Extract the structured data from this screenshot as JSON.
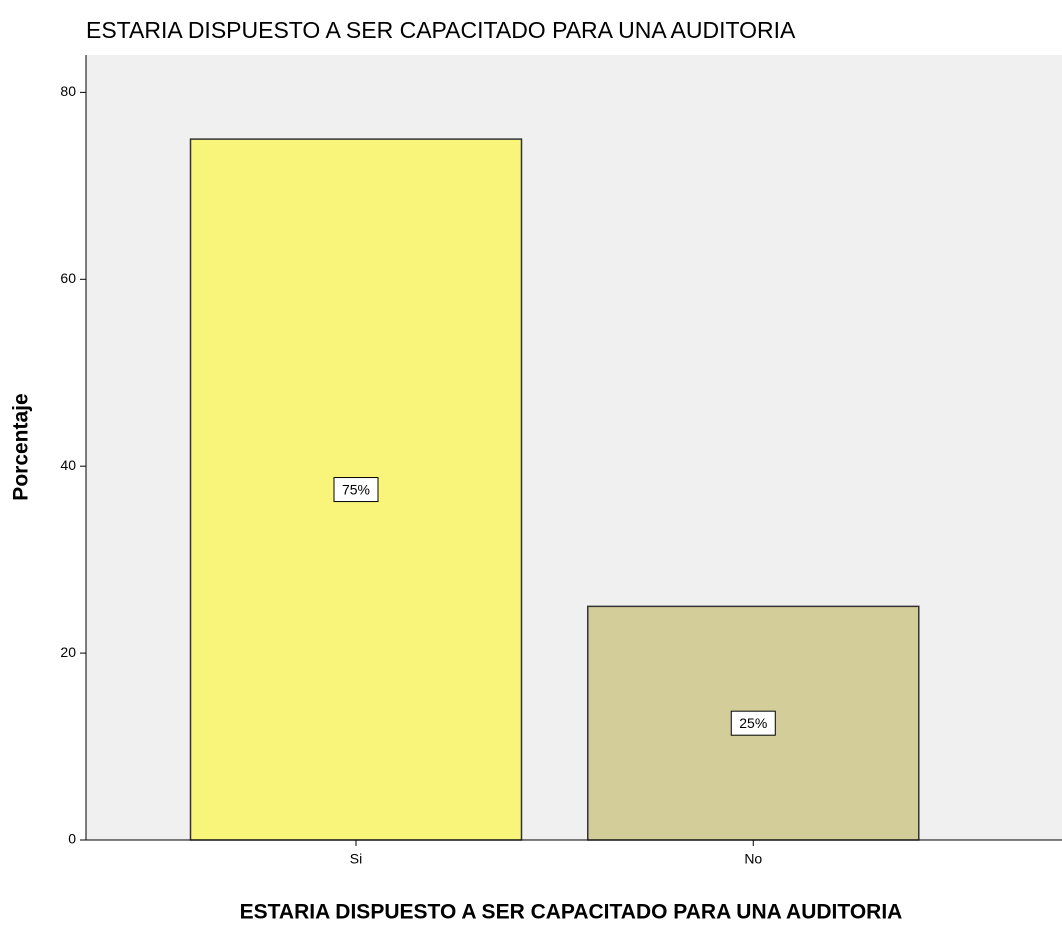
{
  "chart_data": {
    "type": "bar",
    "title": "ESTARIA DISPUESTO A SER CAPACITADO PARA UNA AUDITORIA",
    "x_label": "ESTARIA DISPUESTO A SER CAPACITADO PARA UNA AUDITORIA",
    "y_label": "Porcentaje",
    "categories": [
      "Si",
      "No"
    ],
    "values": [
      75,
      25
    ],
    "value_labels": [
      "75%",
      "25%"
    ],
    "colors": [
      "#f8f57a",
      "#d3cd9a"
    ],
    "ylim": [
      0,
      84
    ],
    "yticks": [
      0,
      20,
      40,
      60,
      80
    ],
    "grid": false
  }
}
